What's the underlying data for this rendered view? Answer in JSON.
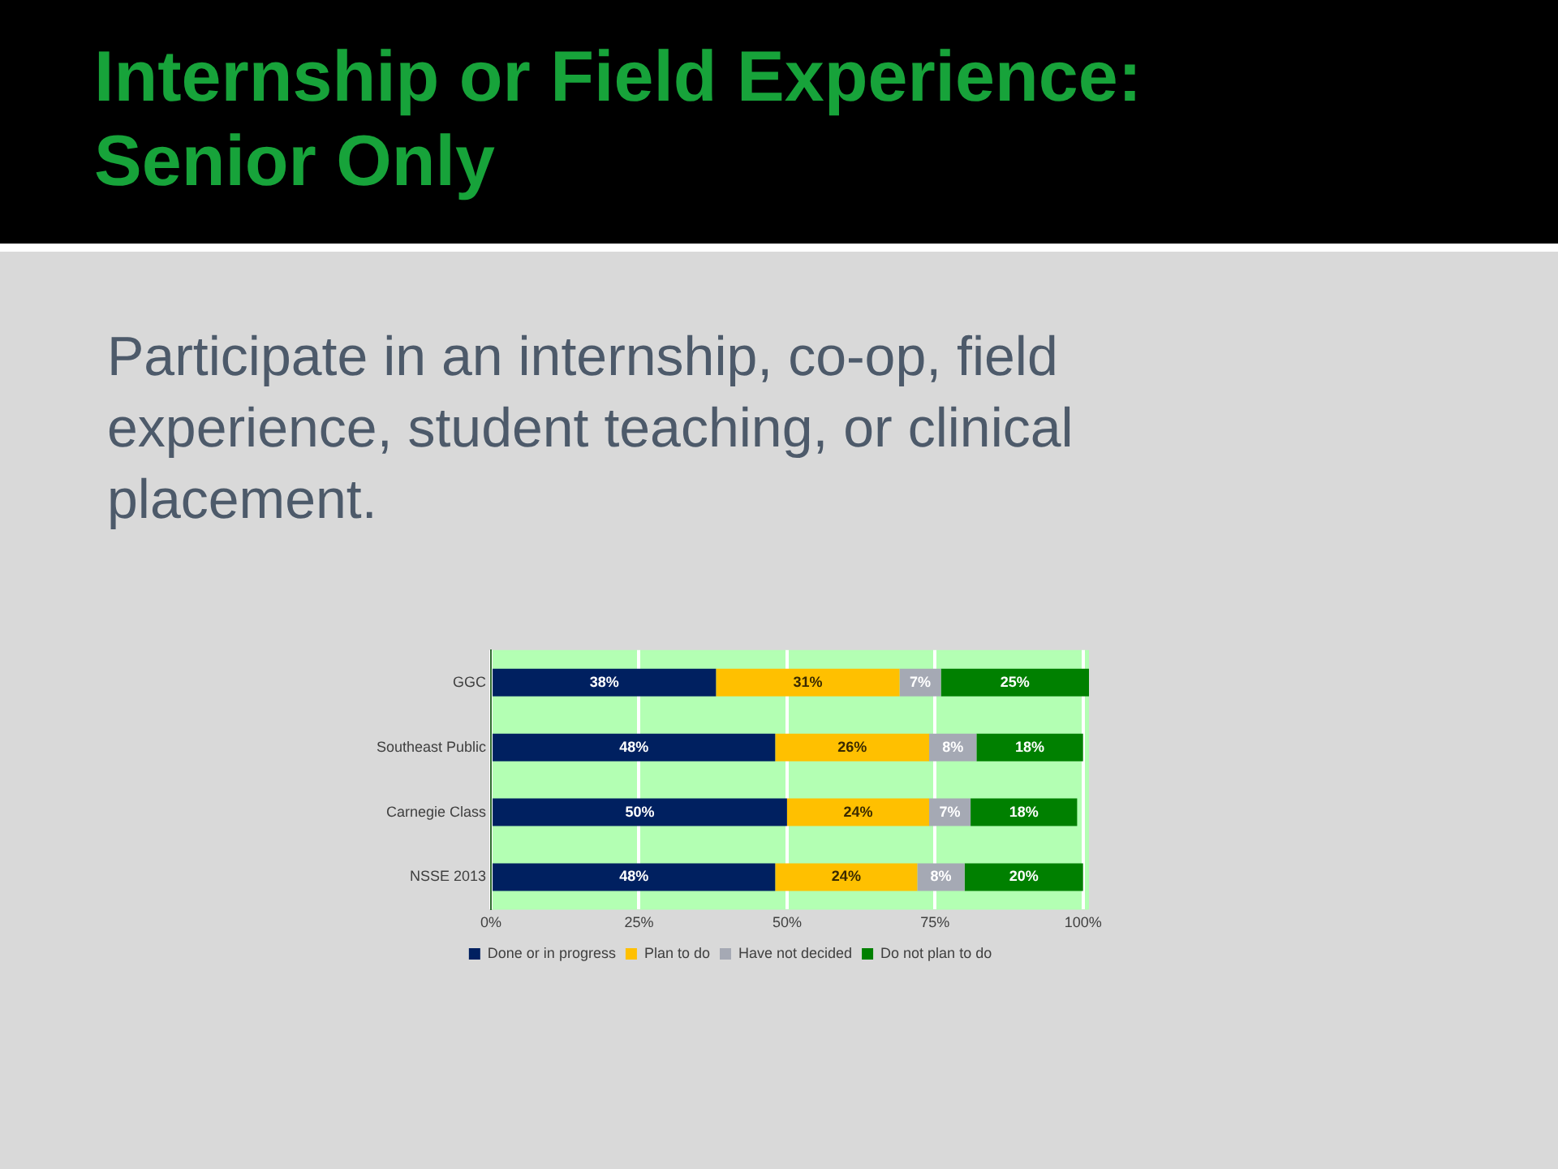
{
  "chart_data": {
    "type": "bar",
    "title": "Internship or Field Experience: Senior Only",
    "subtitle": "Participate in an internship, co-op, field experience, student teaching, or clinical placement.",
    "orientation": "horizontal",
    "stacked": true,
    "categories": [
      "GGC",
      "Southeast Public",
      "Carnegie Class",
      "NSSE 2013"
    ],
    "series": [
      {
        "name": "Done or in progress",
        "color": "#002060",
        "values": [
          38,
          48,
          50,
          48
        ],
        "value_labels": [
          "38%",
          "48%",
          "50%",
          "48%"
        ]
      },
      {
        "name": "Plan to do",
        "color": "#ffc000",
        "values": [
          31,
          26,
          24,
          24
        ],
        "value_labels": [
          "31%",
          "26%",
          "24%",
          "24%"
        ]
      },
      {
        "name": "Have not decided",
        "color": "#a5a9b4",
        "values": [
          7,
          8,
          7,
          8
        ],
        "value_labels": [
          "7%",
          "8%",
          "7%",
          "8%"
        ]
      },
      {
        "name": "Do not plan to do",
        "color": "#008000",
        "values": [
          25,
          18,
          18,
          20
        ],
        "value_labels": [
          "25%",
          "18%",
          "18%",
          "20%"
        ]
      }
    ],
    "xlim": [
      0,
      101
    ],
    "xticks": [
      {
        "value": 0,
        "label": "0%"
      },
      {
        "value": 25,
        "label": "25%"
      },
      {
        "value": 50,
        "label": "50%"
      },
      {
        "value": 75,
        "label": "75%"
      },
      {
        "value": 100,
        "label": "100%"
      }
    ],
    "grid": "x",
    "legend": "bottom"
  }
}
